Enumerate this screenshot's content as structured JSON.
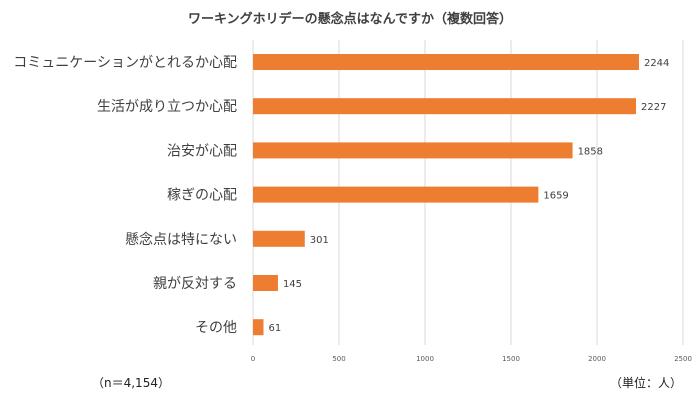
{
  "chart_data": {
    "type": "bar",
    "orientation": "horizontal",
    "title": "ワーキングホリデーの懸念点はなんですか（複数回答）",
    "categories": [
      "コミュニケーションがとれるか心配",
      "生活が成り立つか心配",
      "治安が心配",
      "稼ぎの心配",
      "懸念点は特にない",
      "親が反対する",
      "その他"
    ],
    "values": [
      2244,
      2227,
      1858,
      1659,
      301,
      145,
      61
    ],
    "xlim": [
      0,
      2500
    ],
    "xticks": [
      0,
      500,
      1000,
      1500,
      2000,
      2500
    ],
    "grid": "vertical",
    "bar_color": "#ED7D31",
    "show_data_labels": true
  },
  "notes": {
    "sample": "（n＝4,154）",
    "unit": "（単位：人）"
  }
}
